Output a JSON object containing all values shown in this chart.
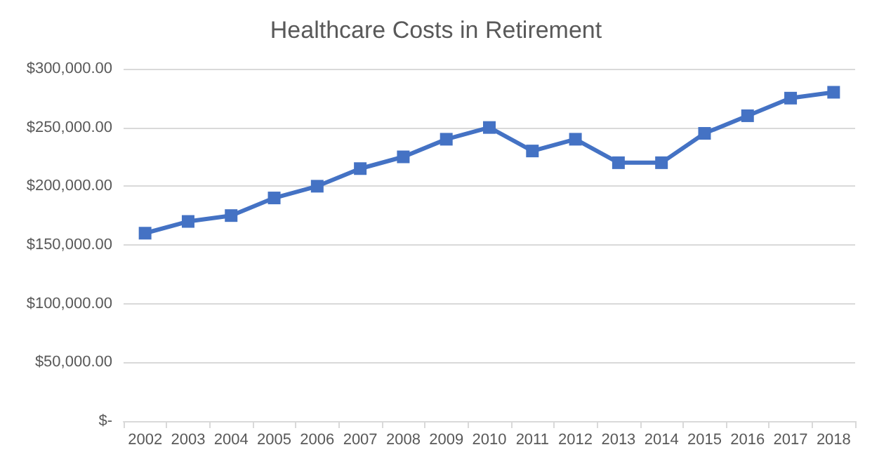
{
  "chart_data": {
    "type": "line",
    "title": "Healthcare Costs in Retirement",
    "categories": [
      "2002",
      "2003",
      "2004",
      "2005",
      "2006",
      "2007",
      "2008",
      "2009",
      "2010",
      "2011",
      "2012",
      "2013",
      "2014",
      "2015",
      "2016",
      "2017",
      "2018"
    ],
    "series": [
      {
        "color": "#4472c4",
        "values": [
          160000,
          170000,
          175000,
          190000,
          200000,
          215000,
          225000,
          240000,
          250000,
          230000,
          240000,
          220000,
          220000,
          245000,
          260000,
          275000,
          280000
        ]
      }
    ],
    "ylim": [
      0,
      300000
    ],
    "yticks": [
      {
        "value": 0,
        "label": "$-"
      },
      {
        "value": 50000,
        "label": "$50,000.00"
      },
      {
        "value": 100000,
        "label": "$100,000.00"
      },
      {
        "value": 150000,
        "label": "$150,000.00"
      },
      {
        "value": 200000,
        "label": "$200,000.00"
      },
      {
        "value": 250000,
        "label": "$250,000.00"
      },
      {
        "value": 300000,
        "label": "$300,000.00"
      }
    ],
    "grid": "y",
    "marker": "square",
    "line_style": "solid"
  }
}
